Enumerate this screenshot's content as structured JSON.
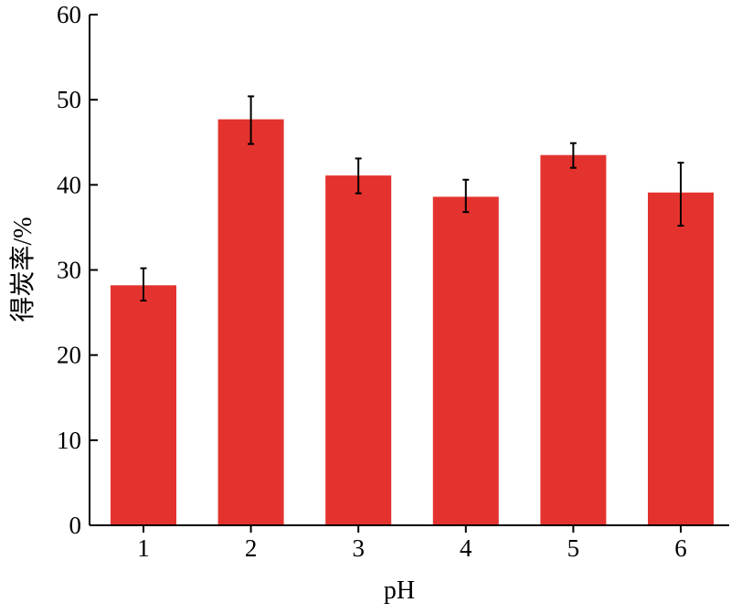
{
  "chart_data": {
    "type": "bar",
    "title": "",
    "xlabel": "pH",
    "ylabel": "得炭率/%",
    "categories": [
      "1",
      "2",
      "3",
      "4",
      "5",
      "6"
    ],
    "values": [
      28.2,
      47.7,
      41.1,
      38.6,
      43.5,
      39.1
    ],
    "error_low": [
      26.4,
      44.8,
      39.0,
      36.8,
      42.0,
      35.2
    ],
    "error_high": [
      30.2,
      50.4,
      43.1,
      40.6,
      44.9,
      42.6
    ],
    "ylim": [
      0,
      60
    ],
    "yticks": [
      "0",
      "10",
      "20",
      "30",
      "40",
      "50",
      "60"
    ],
    "grid": false,
    "legend": "none",
    "colors": {
      "bar": "#E4332E",
      "axis": "#000000",
      "error_bar": "#000000"
    }
  }
}
